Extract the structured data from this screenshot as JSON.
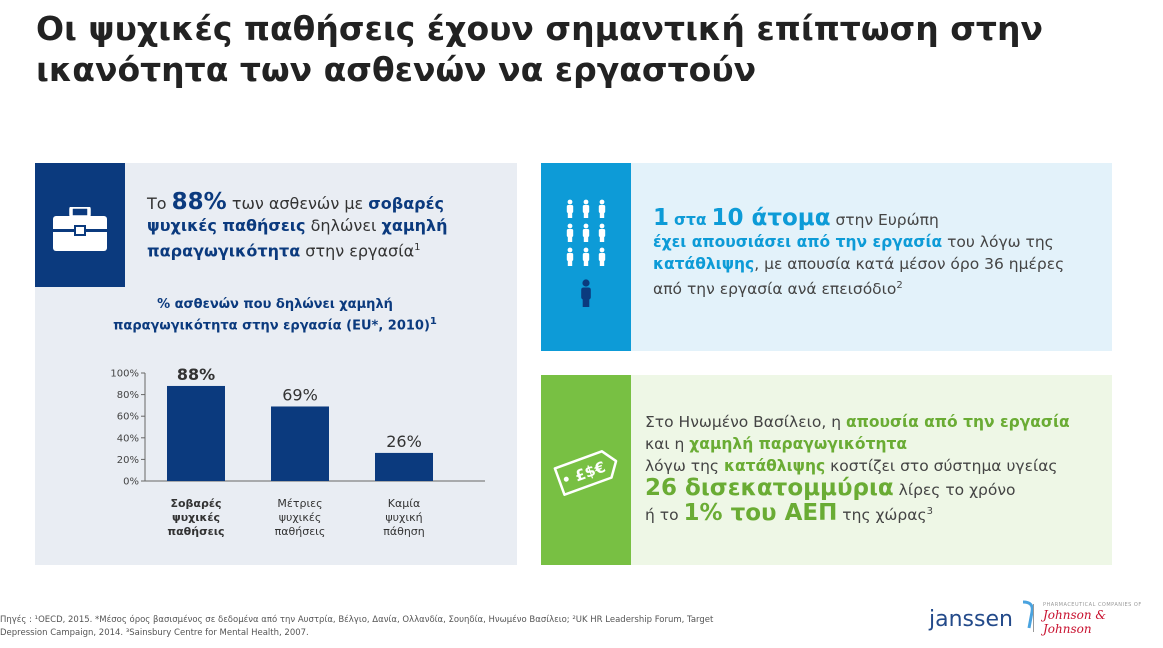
{
  "title": {
    "line1": "Οι ψυχικές παθήσεις έχουν σημαντική επίπτωση στην",
    "line2": "ικανότητα των ασθενών να εργαστούν"
  },
  "left_panel": {
    "stat_pre": "Το",
    "stat_value": "88%",
    "stat_mid": "των ασθενών με",
    "stat_em1": "σοβαρές ψυχικές παθήσεις",
    "stat_mid2": "δηλώνει",
    "stat_em2": "χαμηλή παραγωγικότητα",
    "stat_post": "στην εργασία",
    "stat_sup": "1",
    "icon": "briefcase-icon"
  },
  "chart_data": {
    "type": "bar",
    "title": "% ασθενών που δηλώνει χαμηλή παραγωγικότητα στην εργασία (EU*, 2010)",
    "title_sup": "1",
    "categories": [
      [
        "Σοβαρές",
        "ψυχικές",
        "παθήσεις"
      ],
      [
        "Μέτριες",
        "ψυχικές",
        "παθήσεις"
      ],
      [
        "Καμία",
        "ψυχική",
        "πάθηση"
      ]
    ],
    "values": [
      88,
      69,
      26
    ],
    "data_labels": [
      "88%",
      "69%",
      "26%"
    ],
    "yticks": [
      "0%",
      "20%",
      "40%",
      "60%",
      "80%",
      "100%"
    ],
    "ylim": [
      0,
      100
    ],
    "color": "#0b3a7e"
  },
  "right_top": {
    "icon": "people-icon",
    "big1": "1",
    "small1": "στα",
    "big2": "10 άτομα",
    "text1": "στην Ευρώπη",
    "em1": "έχει απουσιάσει από την εργασία",
    "text2": "του λόγω της",
    "em2": "κατάθλιψης",
    "text3": ", με απουσία κατά μέσον όρο 36 ημέρες από την εργασία ανά επεισόδιο",
    "sup": "2"
  },
  "right_bottom": {
    "icon": "currency-tag-icon",
    "currency_text": "£$€",
    "text1": "Στο Ηνωμένο Βασίλειο, η",
    "em1": "απουσία από την εργασία",
    "text2": "και η",
    "em2": "χαμηλή παραγωγικότητα",
    "text3": "λόγω της",
    "em3": "κατάθλιψης",
    "text4": "κοστίζει στο σύστημα υγείας",
    "big1": "26 δισεκατομμύρια",
    "text5": "λίρες το χρόνο",
    "text6": "ή το",
    "big2": "1% του ΑΕΠ",
    "text7": "της χώρας",
    "sup": "3"
  },
  "footer": {
    "line1": "Πηγές : ¹OECD, 2015. *Μέσος όρος βασισμένος σε δεδομένα από την Αυστρία, Βέλγιο, Δανία, Ολλανδία, Σουηδία, Ηνωμένο Βασίλειο; ²UK HR Leadership Forum, Target",
    "line2": "Depression Campaign, 2014. ³Sainsbury Centre for Mental Health, 2007."
  },
  "logos": {
    "janssen": "janssen",
    "jnj_small": "PHARMACEUTICAL COMPANIES OF",
    "jnj_script": "Johnson & Johnson"
  }
}
